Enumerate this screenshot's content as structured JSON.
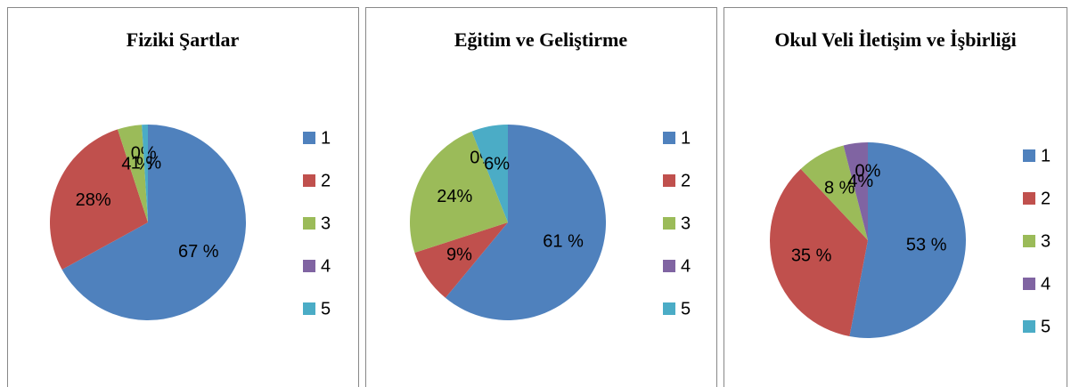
{
  "chart_data": [
    {
      "type": "pie",
      "title": "Fiziki Şartlar",
      "categories": [
        "1",
        "2",
        "3",
        "4",
        "5"
      ],
      "values": [
        67,
        28,
        4,
        0,
        1
      ],
      "value_labels": [
        "67 %",
        "28%",
        "4 %",
        "0%",
        "1 %"
      ],
      "colors": [
        "#4f81bd",
        "#c0504d",
        "#9bbb59",
        "#8064a2",
        "#4bacc6"
      ],
      "legend": "right"
    },
    {
      "type": "pie",
      "title": "Eğitim ve Geliştirme",
      "categories": [
        "1",
        "2",
        "3",
        "4",
        "5"
      ],
      "values": [
        61,
        9,
        24,
        0,
        6
      ],
      "value_labels": [
        "61 %",
        "9%",
        "24%",
        "0%",
        "6%"
      ],
      "colors": [
        "#4f81bd",
        "#c0504d",
        "#9bbb59",
        "#8064a2",
        "#4bacc6"
      ],
      "legend": "right"
    },
    {
      "type": "pie",
      "title": "Okul Veli İletişim ve İşbirliği",
      "categories": [
        "1",
        "2",
        "3",
        "4",
        "5"
      ],
      "values": [
        53,
        35,
        8,
        4,
        0
      ],
      "value_labels": [
        "53 %",
        "35 %",
        "8 %",
        "4%",
        "0%"
      ],
      "colors": [
        "#4f81bd",
        "#c0504d",
        "#9bbb59",
        "#8064a2",
        "#4bacc6"
      ],
      "legend": "right"
    }
  ]
}
